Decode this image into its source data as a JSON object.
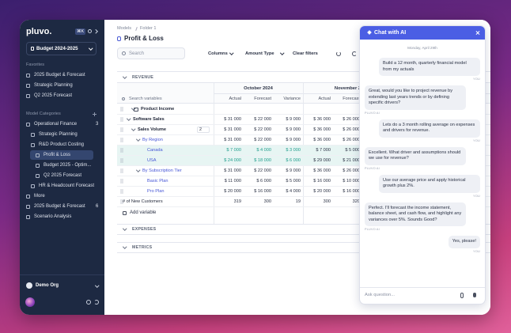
{
  "sidebar": {
    "logo": "pluvo.",
    "shortcut": "⌘K",
    "budget": "Budget 2024-2025",
    "favorites_label": "Favorites",
    "favorites": [
      "2025 Budget & Forecast",
      "Strategic Planning",
      "Q2 2025 Forecast"
    ],
    "categories_label": "Model Categories",
    "tree": [
      {
        "label": "Operational Finance",
        "count": "3"
      },
      {
        "label": "Strategic Planning"
      },
      {
        "label": "R&D Product Costing"
      },
      {
        "label": "Profit & Loss"
      },
      {
        "label": "Budget 2025 - Optim..."
      },
      {
        "label": "Q2 2025 Forecast"
      },
      {
        "label": "HR & Headcount Forecast"
      },
      {
        "label": "More"
      },
      {
        "label": "2025 Budget & Forecast",
        "count": "6"
      },
      {
        "label": "Scenario Analysis"
      }
    ],
    "org": "Demo Org"
  },
  "main": {
    "breadcrumb": [
      "Models",
      "Folder 1"
    ],
    "title": "Profit & Loss",
    "search": "Search",
    "toolbar": [
      "Columns",
      "Amount Type",
      "Clear filters"
    ],
    "section": "REVENUE",
    "search_variables": "Search variables",
    "months": [
      "October 2024",
      "November 2"
    ],
    "columns": [
      "Actual",
      "Forecast",
      "Variance",
      "Actual",
      "Forecast"
    ],
    "rows": [
      {
        "label": "Product Income",
        "values": []
      },
      {
        "label": "Software Sales",
        "values": [
          "$ 31 000",
          "$ 22 000",
          "$ 9 000",
          "$ 36 000",
          "$ 26 000"
        ]
      },
      {
        "label": "Sales Volume",
        "badge": "2",
        "values": [
          "$ 31 000",
          "$ 22 000",
          "$ 9 000",
          "$ 36 000",
          "$ 26 000"
        ]
      },
      {
        "label": "By Region",
        "values": [
          "$ 31 000",
          "$ 22 000",
          "$ 9 000",
          "$ 36 000",
          "$ 26 000"
        ]
      },
      {
        "label": "Canada",
        "values": [
          "$ 7 000",
          "$ 4 000",
          "$ 3 000",
          "$ 7 000",
          "$ 5 000"
        ]
      },
      {
        "label": "USA",
        "values": [
          "$ 24 000",
          "$ 18 000",
          "$ 6 000",
          "$ 29 000",
          "$ 21 000"
        ]
      },
      {
        "label": "By Subscription Tier",
        "values": [
          "$ 31 000",
          "$ 22 000",
          "$ 9 000",
          "$ 36 000",
          "$ 26 000"
        ]
      },
      {
        "label": "Basic Plan",
        "values": [
          "$ 11 000",
          "$ 6 000",
          "$ 5 000",
          "$ 16 000",
          "$ 10 000"
        ]
      },
      {
        "label": "Pro Plan",
        "values": [
          "$ 20 000",
          "$ 16 000",
          "$ 4 000",
          "$ 20 000",
          "$ 16 000"
        ]
      },
      {
        "label": "# of New Customers",
        "values": [
          "319",
          "300",
          "19",
          "300",
          "320"
        ]
      }
    ],
    "add_variable": "Add variable",
    "sections": [
      "EXPENSES",
      "METRICS"
    ]
  },
  "chat": {
    "title": "Chat with AI",
    "date": "Monday, April 29th",
    "messages": [
      {
        "from": "user",
        "text": "Build a 12 month, quarterly financial model from my actuals",
        "meta": "YOU"
      },
      {
        "from": "ai",
        "text": "Great, would you like to project revenue by extending last years trends or by defining specific drivers?",
        "meta": "PLUVO AI"
      },
      {
        "from": "user",
        "text": "Lets do a 3 month rolling average on expenses and drivers for revenue.",
        "meta": "YOU"
      },
      {
        "from": "ai",
        "text": "Excellent. What driver and assumptions should we use for revenue?",
        "meta": "PLUVO AI"
      },
      {
        "from": "user",
        "text": "Use our average price and apply historical growth plus 2%.",
        "meta": "YOU"
      },
      {
        "from": "ai",
        "text": "Perfect. I'll forecast the income statement, balance sheet, and cash flow, and highlight any variances over 5%. Sounds Good?",
        "meta": "PLUVO AI"
      },
      {
        "from": "user",
        "text": "Yes, please!",
        "meta": "YOU"
      }
    ],
    "placeholder": "Ask question..."
  }
}
